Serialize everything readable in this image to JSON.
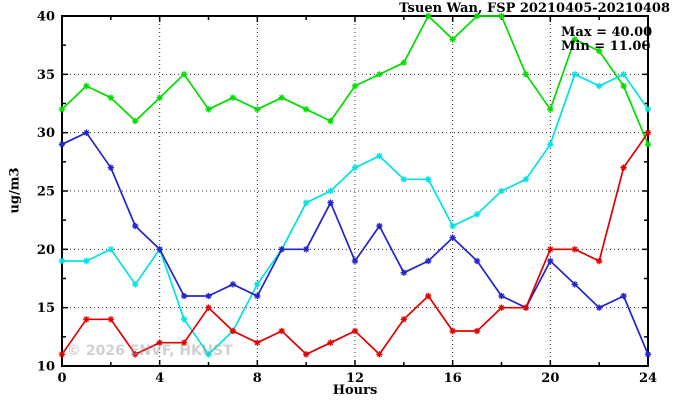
{
  "title": "Tsuen Wan, FSP 20210405-20210408",
  "legend": {
    "max_label": "Max = 40.00",
    "min_label": "Min = 11.00"
  },
  "watermark": "© 2026 ENVF, HKUST",
  "chart_data": {
    "type": "line",
    "title": "Tsuen Wan, FSP 20210405-20210408",
    "xlabel": "Hours",
    "ylabel": "ug/m3",
    "xlim": [
      0,
      24
    ],
    "ylim": [
      10,
      40
    ],
    "xticks": [
      0,
      4,
      8,
      12,
      16,
      20,
      24
    ],
    "yticks": [
      10,
      15,
      20,
      25,
      30,
      35,
      40
    ],
    "grid": true,
    "legend_position": "top-right-inside",
    "annotations": [
      "Max = 40.00",
      "Min = 11.00"
    ],
    "x": [
      0,
      1,
      2,
      3,
      4,
      5,
      6,
      7,
      8,
      9,
      10,
      11,
      12,
      13,
      14,
      15,
      16,
      17,
      18,
      19,
      20,
      21,
      22,
      23,
      24
    ],
    "series": [
      {
        "name": "green",
        "color": "#00dd00",
        "values": [
          32,
          34,
          33,
          31,
          33,
          35,
          32,
          33,
          32,
          33,
          32,
          31,
          34,
          35,
          36,
          40,
          38,
          40,
          40,
          35,
          32,
          38,
          37,
          34,
          29
        ]
      },
      {
        "name": "cyan",
        "color": "#00e3e3",
        "values": [
          19,
          19,
          20,
          17,
          20,
          14,
          11,
          13,
          17,
          20,
          24,
          25,
          27,
          28,
          26,
          26,
          22,
          23,
          25,
          26,
          29,
          35,
          34,
          35,
          32
        ]
      },
      {
        "name": "blue",
        "color": "#2424cc",
        "values": [
          29,
          30,
          27,
          22,
          20,
          16,
          16,
          17,
          16,
          20,
          20,
          24,
          19,
          22,
          18,
          19,
          21,
          19,
          16,
          15,
          19,
          17,
          15,
          16,
          11
        ]
      },
      {
        "name": "red",
        "color": "#e00000",
        "values": [
          11,
          14,
          14,
          11,
          12,
          12,
          15,
          13,
          12,
          13,
          11,
          12,
          13,
          11,
          14,
          16,
          13,
          13,
          15,
          15,
          20,
          20,
          19,
          27,
          30
        ]
      }
    ]
  }
}
